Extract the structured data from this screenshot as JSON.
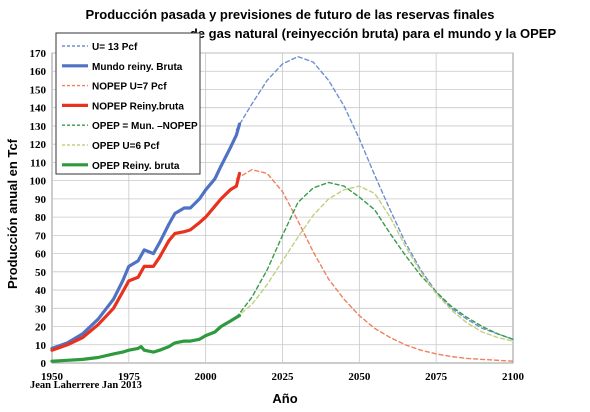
{
  "chart_data": {
    "type": "line",
    "title_line1": "Producción pasada y previsiones de futuro de las reservas finales",
    "title_line2": "de gas natural (reinyección bruta) para el mundo y la OPEP",
    "xlabel": "Año",
    "ylabel": "Producción anual en Tcf",
    "credit": "Jean Laherrere Jan 2013",
    "xlim": [
      1950,
      2100
    ],
    "ylim": [
      0,
      170
    ],
    "xticks": [
      "1950",
      "1975",
      "2000",
      "2025",
      "2050",
      "2075",
      "2100"
    ],
    "yticks": [
      "0",
      "10",
      "20",
      "30",
      "40",
      "50",
      "60",
      "70",
      "80",
      "90",
      "100",
      "110",
      "120",
      "130",
      "140",
      "150",
      "160",
      "170"
    ],
    "grid": true,
    "legend_position": "top-left",
    "series": [
      {
        "name": "U= 13 Pcf",
        "color": "#6f8fd0",
        "style": "dashed",
        "x": [
          2010,
          2015,
          2020,
          2025,
          2030,
          2035,
          2040,
          2045,
          2050,
          2055,
          2060,
          2065,
          2070,
          2075,
          2080,
          2085,
          2090,
          2095,
          2100
        ],
        "y": [
          128,
          142,
          155,
          164,
          168,
          165,
          155,
          141,
          123,
          103,
          84,
          66,
          51,
          39,
          30,
          24,
          19,
          16,
          13
        ]
      },
      {
        "name": "Mundo reiny. Bruta",
        "color": "#4f72c4",
        "style": "solid",
        "x": [
          1950,
          1955,
          1960,
          1965,
          1970,
          1973,
          1975,
          1978,
          1980,
          1983,
          1985,
          1988,
          1990,
          1993,
          1995,
          1998,
          2000,
          2003,
          2005,
          2008,
          2010,
          2011
        ],
        "y": [
          8,
          11,
          16,
          24,
          35,
          45,
          53,
          56,
          62,
          60,
          66,
          76,
          82,
          85,
          85,
          90,
          95,
          101,
          108,
          118,
          125,
          131
        ]
      },
      {
        "name": "NOPEP U=7 Pcf",
        "color": "#f08060",
        "style": "dashed",
        "x": [
          2010,
          2015,
          2020,
          2025,
          2030,
          2035,
          2040,
          2045,
          2050,
          2055,
          2060,
          2065,
          2070,
          2075,
          2080,
          2085,
          2090,
          2095,
          2100
        ],
        "y": [
          101,
          106,
          104,
          94,
          78,
          61,
          46,
          35,
          26,
          19,
          14,
          10,
          7,
          5,
          3.5,
          2.5,
          2,
          1.5,
          1
        ]
      },
      {
        "name": "NOPEP Reiny.bruta",
        "color": "#e8321e",
        "style": "solid",
        "x": [
          1950,
          1955,
          1960,
          1965,
          1970,
          1973,
          1975,
          1978,
          1980,
          1983,
          1985,
          1988,
          1990,
          1993,
          1995,
          1998,
          2000,
          2003,
          2005,
          2008,
          2010,
          2011
        ],
        "y": [
          7,
          10,
          14,
          21,
          30,
          39,
          45,
          47,
          53,
          53,
          58,
          67,
          71,
          72,
          73,
          77,
          80,
          86,
          90,
          95,
          97,
          104
        ]
      },
      {
        "name": "OPEP = Mun. –NOPEP",
        "color": "#3a9a4a",
        "style": "dashed",
        "x": [
          2010,
          2015,
          2020,
          2025,
          2030,
          2035,
          2040,
          2045,
          2050,
          2055,
          2060,
          2065,
          2070,
          2075,
          2080,
          2085,
          2090,
          2095,
          2100
        ],
        "y": [
          25,
          36,
          51,
          70,
          88,
          96,
          99,
          97,
          91,
          84,
          71,
          59,
          48,
          39,
          31,
          25,
          20,
          16,
          13
        ]
      },
      {
        "name": "OPEP U=6 Pcf",
        "color": "#c0d080",
        "style": "dashed",
        "x": [
          2010,
          2015,
          2020,
          2025,
          2030,
          2035,
          2040,
          2045,
          2050,
          2055,
          2060,
          2065,
          2070,
          2075,
          2080,
          2085,
          2090,
          2095,
          2100
        ],
        "y": [
          25,
          32,
          43,
          56,
          69,
          81,
          90,
          95,
          97,
          93,
          80,
          64,
          50,
          38,
          29,
          22,
          17,
          14,
          12
        ]
      },
      {
        "name": "OPEP Reiny. bruta",
        "color": "#2e9a3e",
        "style": "solid",
        "x": [
          1950,
          1955,
          1960,
          1965,
          1970,
          1973,
          1975,
          1978,
          1979,
          1980,
          1983,
          1985,
          1988,
          1990,
          1993,
          1995,
          1998,
          2000,
          2003,
          2005,
          2008,
          2010,
          2011
        ],
        "y": [
          1,
          1.5,
          2,
          3,
          5,
          6,
          7,
          8,
          9,
          7,
          6,
          7,
          9,
          11,
          12,
          12,
          13,
          15,
          17,
          20,
          23,
          25,
          26
        ]
      }
    ]
  }
}
